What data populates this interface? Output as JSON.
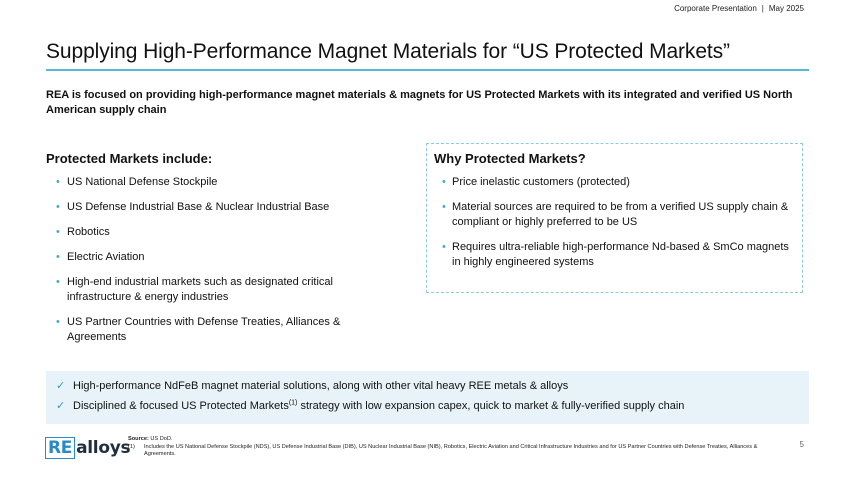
{
  "header": {
    "presentation_label": "Corporate Presentation",
    "separator": "|",
    "date": "May 2025"
  },
  "title": "Supplying High-Performance Magnet Materials for “US Protected Markets”",
  "intro": "REA is focused on providing high-performance magnet materials & magnets for US Protected Markets with its integrated and verified US North American supply chain",
  "left": {
    "heading": "Protected Markets include:",
    "items": [
      "US National Defense Stockpile",
      "US Defense Industrial Base & Nuclear Industrial Base",
      "Robotics",
      "Electric Aviation",
      "High-end industrial markets such as designated critical infrastructure & energy industries",
      "US Partner Countries with Defense Treaties, Alliances & Agreements"
    ]
  },
  "right": {
    "heading": "Why Protected Markets?",
    "items": [
      "Price inelastic customers (protected)",
      "Material sources are required to be from a verified US supply chain & compliant or highly preferred to be US",
      "Requires ultra-reliable high-performance Nd-based & SmCo magnets in highly engineered systems"
    ]
  },
  "highlights": {
    "row1": "High-performance NdFeB magnet material solutions, along with other vital heavy REE metals & alloys",
    "row2_before": "Disciplined & focused US Protected Markets",
    "row2_sup": "(1)",
    "row2_after": " strategy with low expansion capex, quick to market & fully-verified supply chain"
  },
  "logo": {
    "part1": "RE",
    "part2": "alloys"
  },
  "footnotes": {
    "source_label": "Source:",
    "source_text": " US DoD.",
    "note_number": "(1)",
    "note_text": "Includes the US National Defense Stockpile (NDS), US Defense Industrial Base (DIB), US Nuclear Industrial Base (NIB), Robotics, Electric Aviation and Critical Infrastructure Industries and for US Partner Countries with Defense Treaties, Alliances & Agreements."
  },
  "page_number": "5",
  "colors": {
    "accent": "#58b9d5",
    "bullet": "#4aa9cc",
    "band": "#e8f3f9",
    "logo_blue": "#2b89c8"
  }
}
